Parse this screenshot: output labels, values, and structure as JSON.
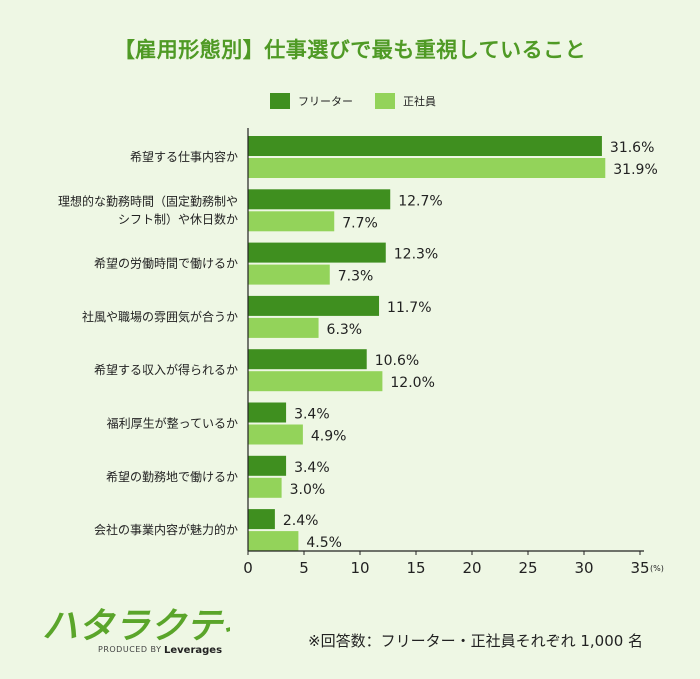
{
  "title": "【雇用形態別】仕事選びで最も重視していること",
  "legend": {
    "series1": "フリーター",
    "series2": "正社員"
  },
  "colors": {
    "series1": "#3f8f1f",
    "series2": "#93d35a",
    "title": "#4f9a25"
  },
  "chart_data": {
    "type": "bar",
    "orientation": "horizontal",
    "categories": [
      [
        "希望する仕事内容か"
      ],
      [
        "理想的な勤務時間（固定勤務制や",
        "シフト制）や休日数か"
      ],
      [
        "希望の労働時間で働けるか"
      ],
      [
        "社風や職場の雰囲気が合うか"
      ],
      [
        "希望する収入が得られるか"
      ],
      [
        "福利厚生が整っているか"
      ],
      [
        "希望の勤務地で働けるか"
      ],
      [
        "会社の事業内容が魅力的か"
      ]
    ],
    "series": [
      {
        "name": "フリーター",
        "values": [
          31.6,
          12.7,
          12.3,
          11.7,
          10.6,
          3.4,
          3.4,
          2.4
        ]
      },
      {
        "name": "正社員",
        "values": [
          31.9,
          7.7,
          7.3,
          6.3,
          12.0,
          4.9,
          3.0,
          4.5
        ]
      }
    ],
    "value_labels": [
      [
        "31.6%",
        "12.7%",
        "12.3%",
        "11.7%",
        "10.6%",
        "3.4%",
        "3.4%",
        "2.4%"
      ],
      [
        "31.9%",
        "7.7%",
        "7.3%",
        "6.3%",
        "12.0%",
        "4.9%",
        "3.0%",
        "4.5%"
      ]
    ],
    "xlim": [
      0,
      35
    ],
    "xticks": [
      "0",
      "5",
      "10",
      "15",
      "20",
      "25",
      "30",
      "35"
    ],
    "xunit": "(%)",
    "grid": false,
    "legend_position": "top"
  },
  "logo": {
    "mark": "ハタラクティブ",
    "produced_by": "PRODUCED BY",
    "brand": "Leverages"
  },
  "note": "※回答数：フリーター・正社員それぞれ 1,000 名"
}
